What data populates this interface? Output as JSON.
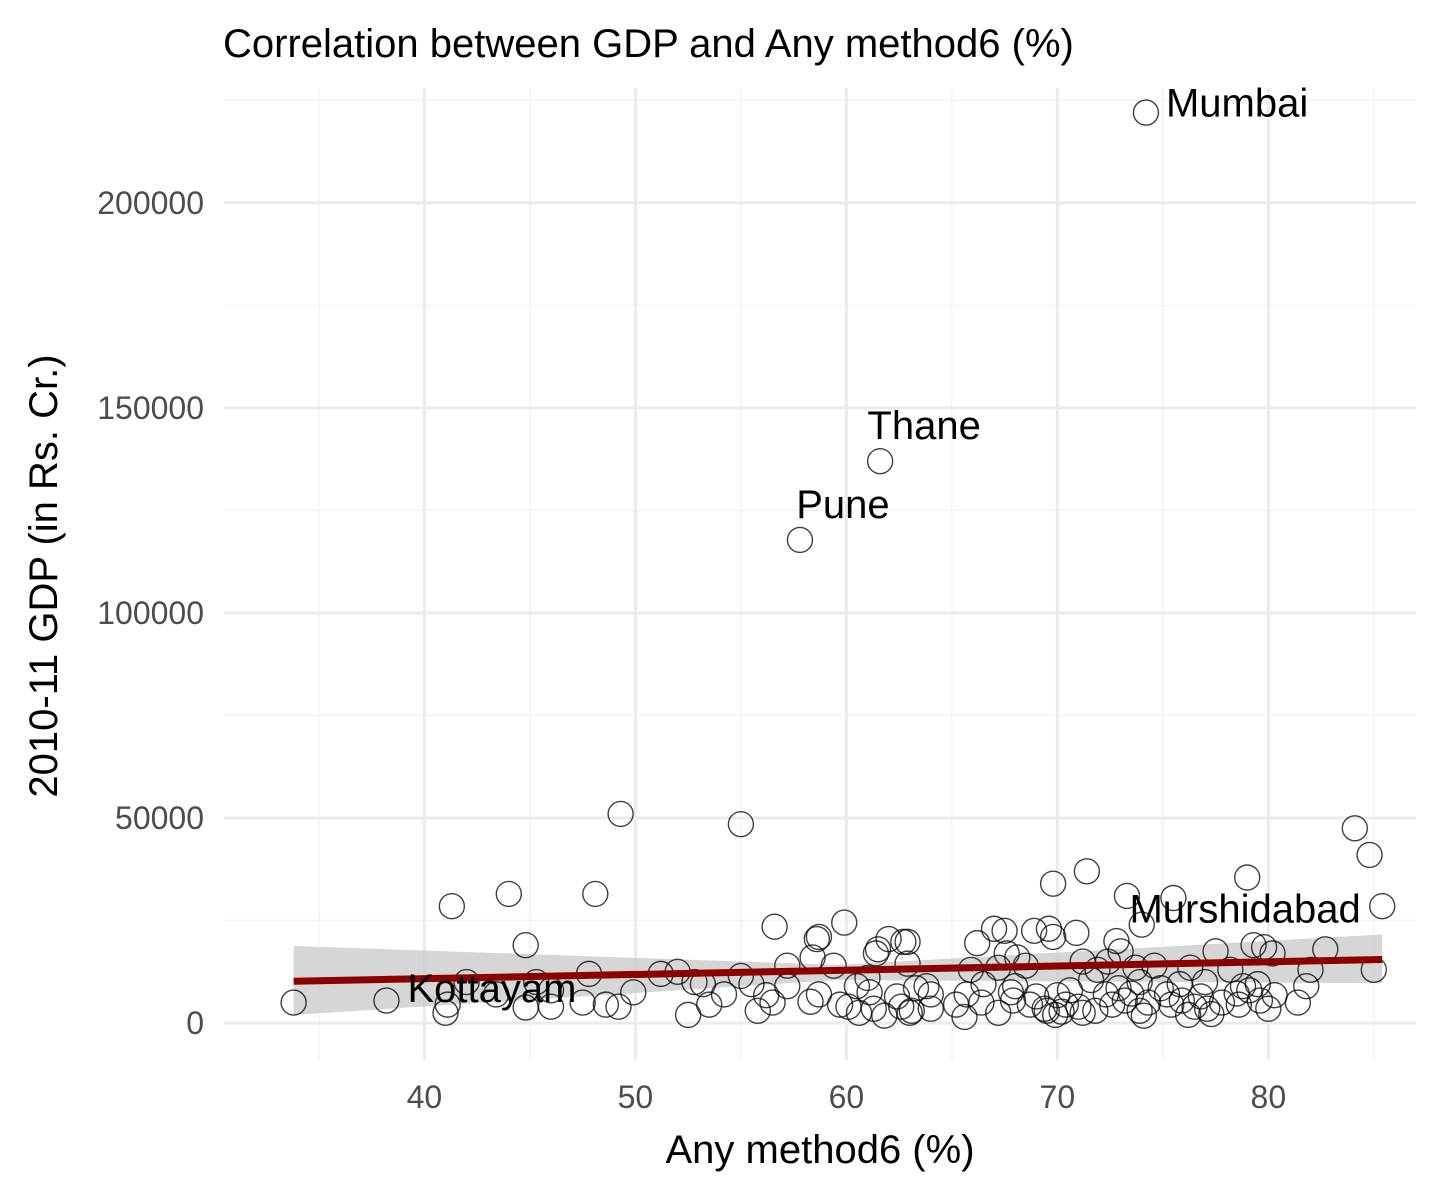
{
  "chart_data": {
    "type": "scatter",
    "title": "Correlation between GDP and Any method6 (%)",
    "xlabel": "Any method6 (%)",
    "ylabel": "2010-11 GDP (in Rs. Cr.)",
    "xlim": [
      30.5,
      87
    ],
    "ylim": [
      -9000,
      228000
    ],
    "x_ticks": [
      40,
      50,
      60,
      70,
      80
    ],
    "x_tick_labels": [
      "40",
      "50",
      "60",
      "70",
      "80"
    ],
    "y_ticks": [
      0,
      50000,
      100000,
      150000,
      200000
    ],
    "y_tick_labels": [
      "0",
      "50000",
      "100000",
      "150000",
      "200000"
    ],
    "grid": true,
    "series": [
      {
        "points": [
          [
            74.2,
            222000
          ],
          [
            61.6,
            137000
          ],
          [
            57.8,
            117800
          ],
          [
            49.3,
            51000
          ],
          [
            55.0,
            48500
          ],
          [
            84.1,
            47500
          ],
          [
            84.8,
            41000
          ],
          [
            71.4,
            37000
          ],
          [
            79.0,
            35500
          ],
          [
            69.8,
            34000
          ],
          [
            44.0,
            31500
          ],
          [
            48.1,
            31500
          ],
          [
            73.3,
            31000
          ],
          [
            75.5,
            30500
          ],
          [
            41.3,
            28500
          ],
          [
            85.4,
            28500
          ],
          [
            74.0,
            24000
          ],
          [
            59.9,
            24500
          ],
          [
            56.6,
            23500
          ],
          [
            67.0,
            23000
          ],
          [
            67.5,
            22500
          ],
          [
            68.9,
            22500
          ],
          [
            69.6,
            23000
          ],
          [
            70.9,
            22000
          ],
          [
            58.7,
            21000
          ],
          [
            58.6,
            20500
          ],
          [
            62.0,
            20500
          ],
          [
            62.7,
            19800
          ],
          [
            62.9,
            19800
          ],
          [
            66.2,
            19500
          ],
          [
            69.8,
            21000
          ],
          [
            72.8,
            20000
          ],
          [
            79.3,
            19000
          ],
          [
            79.8,
            18500
          ],
          [
            82.7,
            18000
          ],
          [
            44.8,
            19000
          ],
          [
            61.5,
            18000
          ],
          [
            61.4,
            17000
          ],
          [
            67.6,
            17000
          ],
          [
            68.1,
            16000
          ],
          [
            73.0,
            17500
          ],
          [
            77.5,
            17500
          ],
          [
            80.2,
            17000
          ],
          [
            71.2,
            15000
          ],
          [
            72.4,
            15000
          ],
          [
            58.4,
            16000
          ],
          [
            57.2,
            14000
          ],
          [
            59.4,
            14000
          ],
          [
            62.9,
            14500
          ],
          [
            65.9,
            13000
          ],
          [
            67.2,
            13500
          ],
          [
            68.5,
            14000
          ],
          [
            71.9,
            13000
          ],
          [
            73.7,
            13500
          ],
          [
            74.6,
            14000
          ],
          [
            76.3,
            13500
          ],
          [
            78.2,
            13000
          ],
          [
            82.0,
            13000
          ],
          [
            85.0,
            13000
          ],
          [
            47.8,
            12000
          ],
          [
            51.2,
            12000
          ],
          [
            52.0,
            12500
          ],
          [
            55.0,
            11500
          ],
          [
            61.0,
            11000
          ],
          [
            42.0,
            10000
          ],
          [
            45.3,
            10000
          ],
          [
            53.2,
            9500
          ],
          [
            57.2,
            9000
          ],
          [
            60.5,
            9000
          ],
          [
            63.8,
            9000
          ],
          [
            66.5,
            9500
          ],
          [
            71.6,
            10500
          ],
          [
            73.9,
            10000
          ],
          [
            75.8,
            9500
          ],
          [
            77.0,
            10000
          ],
          [
            78.8,
            9000
          ],
          [
            79.5,
            9500
          ],
          [
            81.8,
            9000
          ],
          [
            46.0,
            8000
          ],
          [
            49.9,
            7500
          ],
          [
            54.2,
            7000
          ],
          [
            56.2,
            6800
          ],
          [
            58.7,
            7000
          ],
          [
            61.1,
            7500
          ],
          [
            62.4,
            6500
          ],
          [
            64.0,
            7000
          ],
          [
            65.7,
            7000
          ],
          [
            67.8,
            7500
          ],
          [
            69.0,
            6500
          ],
          [
            70.0,
            6800
          ],
          [
            72.3,
            7000
          ],
          [
            73.5,
            7200
          ],
          [
            75.2,
            7000
          ],
          [
            76.8,
            6500
          ],
          [
            78.5,
            7200
          ],
          [
            80.3,
            6800
          ],
          [
            33.8,
            5000
          ],
          [
            38.2,
            5500
          ],
          [
            41.1,
            4500
          ],
          [
            43.4,
            7000
          ],
          [
            44.8,
            3800
          ],
          [
            46.0,
            4000
          ],
          [
            47.5,
            5000
          ],
          [
            48.6,
            4500
          ],
          [
            49.2,
            4000
          ],
          [
            52.5,
            2000
          ],
          [
            53.5,
            4500
          ],
          [
            55.8,
            3000
          ],
          [
            56.5,
            5000
          ],
          [
            58.3,
            5200
          ],
          [
            60.1,
            4000
          ],
          [
            60.6,
            2500
          ],
          [
            61.3,
            3500
          ],
          [
            62.6,
            4000
          ],
          [
            63.1,
            3000
          ],
          [
            64.0,
            3500
          ],
          [
            65.2,
            4500
          ],
          [
            66.4,
            5000
          ],
          [
            67.2,
            2500
          ],
          [
            67.9,
            5500
          ],
          [
            68.7,
            4500
          ],
          [
            69.4,
            3500
          ],
          [
            69.9,
            2000
          ],
          [
            70.4,
            4500
          ],
          [
            71.2,
            2500
          ],
          [
            71.8,
            3000
          ],
          [
            72.6,
            4500
          ],
          [
            73.2,
            5500
          ],
          [
            73.9,
            3000
          ],
          [
            74.3,
            5000
          ],
          [
            75.4,
            4500
          ],
          [
            75.9,
            5500
          ],
          [
            76.5,
            4000
          ],
          [
            77.1,
            3500
          ],
          [
            77.8,
            5000
          ],
          [
            78.6,
            4500
          ],
          [
            79.6,
            5500
          ],
          [
            80.0,
            3500
          ],
          [
            81.4,
            5000
          ],
          [
            52.8,
            10000
          ],
          [
            55.5,
            9500
          ],
          [
            63.3,
            8500
          ],
          [
            70.6,
            8000
          ],
          [
            72.9,
            8500
          ],
          [
            74.9,
            8500
          ],
          [
            79.1,
            8000
          ],
          [
            41.0,
            2500
          ],
          [
            59.7,
            4500
          ],
          [
            65.6,
            1500
          ],
          [
            61.8,
            1800
          ],
          [
            69.5,
            3000
          ],
          [
            71.0,
            4000
          ],
          [
            68.0,
            9000
          ],
          [
            63.0,
            2500
          ],
          [
            76.2,
            2000
          ],
          [
            77.3,
            2200
          ],
          [
            70.2,
            2800
          ],
          [
            74.1,
            1800
          ]
        ],
        "color": "#000000"
      }
    ],
    "annotations": [
      {
        "text": "Mumbai",
        "x": 74.2,
        "y": 222000
      },
      {
        "text": "Thane",
        "x": 61.6,
        "y": 137000
      },
      {
        "text": "Pune",
        "x": 57.8,
        "y": 117800
      },
      {
        "text": "Murshidabad",
        "x": 78.9,
        "y": 28000
      },
      {
        "text": "Kottayam",
        "x": 43.2,
        "y": 8500
      }
    ],
    "trend_line": {
      "x": [
        33.8,
        85.4
      ],
      "y": [
        10200,
        15500
      ],
      "color": "#8b0000"
    },
    "confidence_band": {
      "x": [
        33.8,
        59.6,
        85.4
      ],
      "lower": [
        2000,
        10500,
        9700
      ],
      "upper": [
        18800,
        14200,
        21600
      ],
      "color": "#c8c8c8"
    }
  }
}
